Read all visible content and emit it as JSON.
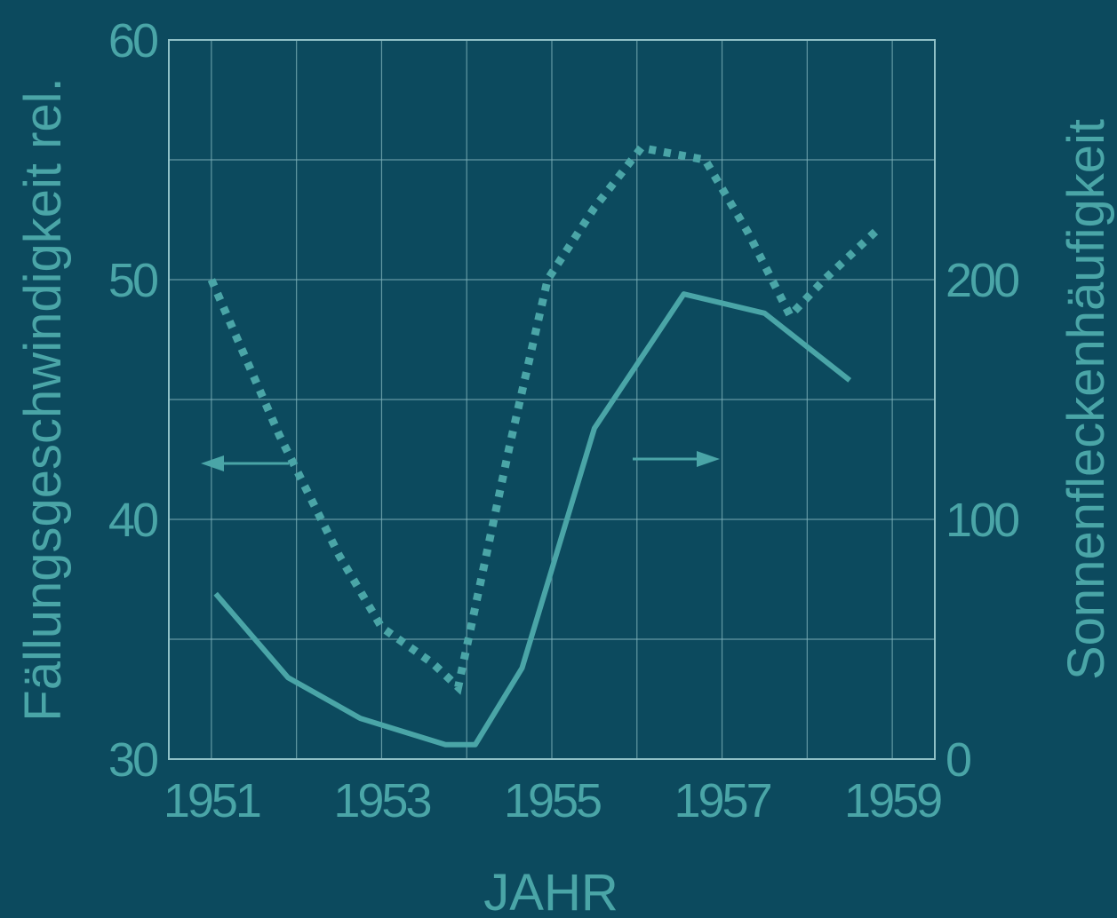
{
  "colors": {
    "background": "#0c4a5e",
    "series": "#4aa5a7",
    "grid": "#7fb3bb"
  },
  "chart_data": {
    "type": "line",
    "title": "",
    "xlabel": "JAHR",
    "ylabel_left": "Fällungsgeschwindigkeit rel.",
    "ylabel_right": "Sonnenfleckenhäufigkeit",
    "xlim": [
      1950.5,
      1959.5
    ],
    "ylim_left": [
      30,
      60
    ],
    "ylim_right": [
      0,
      300
    ],
    "x_ticks": [
      1951,
      1953,
      1955,
      1957,
      1959
    ],
    "y_left_ticks": [
      30,
      40,
      50,
      60
    ],
    "y_right_ticks": [
      0,
      100,
      200
    ],
    "grid": true,
    "series": [
      {
        "axis": "left",
        "style": "dotted",
        "arrow": "left",
        "points": [
          [
            1951.0,
            50.0
          ],
          [
            1951.8,
            43.5
          ],
          [
            1952.5,
            38.5
          ],
          [
            1953.0,
            35.5
          ],
          [
            1953.6,
            34.0
          ],
          [
            1953.9,
            33.0
          ],
          [
            1954.5,
            43.0
          ],
          [
            1954.95,
            50.0
          ],
          [
            1955.5,
            53.0
          ],
          [
            1956.05,
            55.5
          ],
          [
            1956.8,
            55.0
          ],
          [
            1957.3,
            52.0
          ],
          [
            1957.8,
            48.5
          ],
          [
            1958.2,
            50.0
          ],
          [
            1958.8,
            52.0
          ]
        ]
      },
      {
        "axis": "right",
        "style": "solid",
        "arrow": "right",
        "points": [
          [
            1951.05,
            69
          ],
          [
            1951.9,
            34
          ],
          [
            1952.75,
            17
          ],
          [
            1953.75,
            6
          ],
          [
            1954.1,
            6
          ],
          [
            1954.65,
            38
          ],
          [
            1955.5,
            138
          ],
          [
            1956.55,
            194
          ],
          [
            1957.5,
            186
          ],
          [
            1958.5,
            158
          ]
        ]
      }
    ]
  }
}
